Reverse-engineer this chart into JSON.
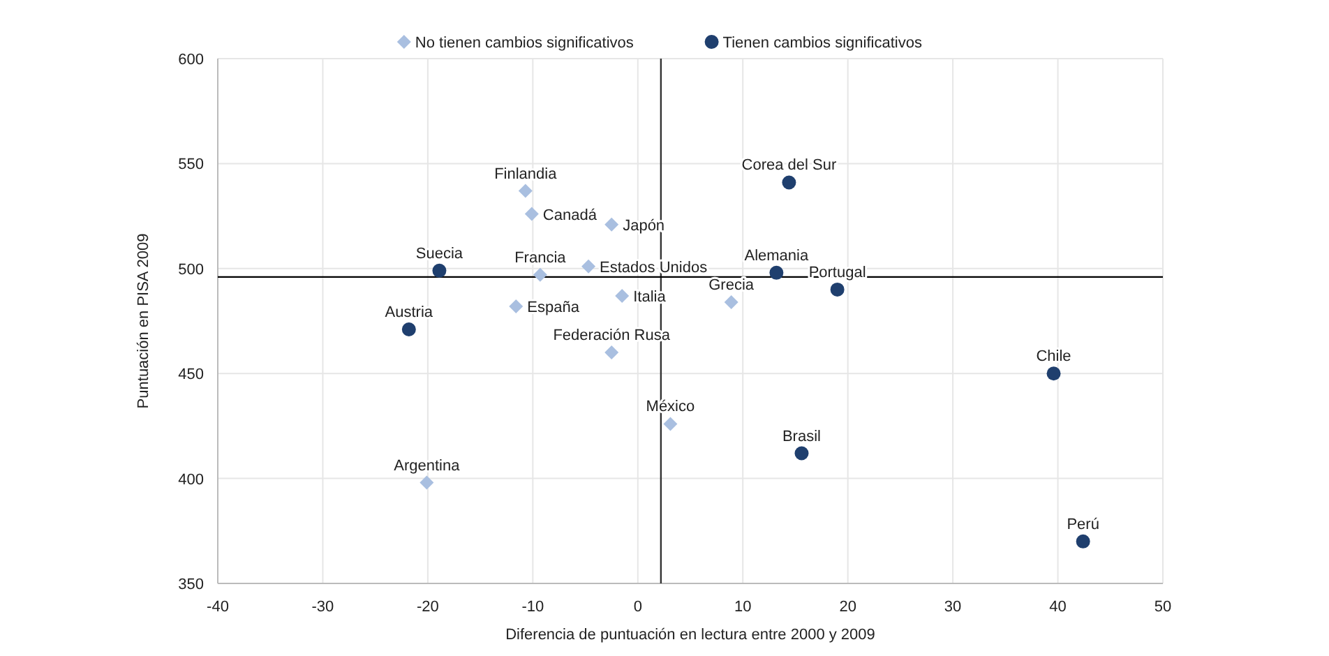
{
  "chart_data": {
    "type": "scatter",
    "xlabel": "Diferencia de puntuación en lectura entre  2000 y 2009",
    "ylabel": "Puntuación en PISA 2009",
    "xlim": [
      -40,
      50
    ],
    "xticks": [
      -40,
      -30,
      -20,
      -10,
      0,
      10,
      20,
      30,
      40,
      50
    ],
    "ylim": [
      350,
      600
    ],
    "yticks": [
      350,
      400,
      450,
      500,
      550,
      600
    ],
    "grid": true,
    "legend": "top",
    "series": [
      {
        "name": "No tienen cambios significativos",
        "color": "#a9bfe0",
        "marker": "diamond",
        "x": [
          -10.7,
          -10.1,
          -2.5,
          -9.3,
          -4.7,
          -1.5,
          -11.6,
          -2.5,
          8.9,
          3.1,
          -20.1
        ],
        "values": [
          537,
          526,
          521,
          497,
          501,
          487,
          482,
          460,
          484,
          426,
          398
        ]
      },
      {
        "name": "Tienen cambios significativos",
        "color": "#1f3f6e",
        "marker": "circle",
        "x": [
          14.4,
          13.2,
          19.0,
          -18.9,
          -21.8,
          39.6,
          15.6,
          42.4
        ],
        "values": [
          541,
          498,
          490,
          499,
          471,
          450,
          412,
          370
        ]
      }
    ],
    "ref_lines": [
      {
        "axis": "x",
        "value": 2.2,
        "color": "#333333"
      },
      {
        "axis": "y",
        "value": 496,
        "color": "#000000"
      }
    ],
    "annotations": [
      {
        "text": "Finlandia",
        "x": -10.7,
        "y": 537
      },
      {
        "text": "Canadá",
        "x": -10.1,
        "y": 526
      },
      {
        "text": "Japón",
        "x": -2.5,
        "y": 521
      },
      {
        "text": "Suecia",
        "x": -18.9,
        "y": 499
      },
      {
        "text": "Francia",
        "x": -9.3,
        "y": 497
      },
      {
        "text": "Estados Unidos",
        "x": -4.7,
        "y": 501
      },
      {
        "text": "Corea del Sur",
        "x": 14.4,
        "y": 541
      },
      {
        "text": "Alemania",
        "x": 13.2,
        "y": 498
      },
      {
        "text": "Portugal",
        "x": 19.0,
        "y": 490
      },
      {
        "text": "Grecia",
        "x": 8.9,
        "y": 484
      },
      {
        "text": "Italia",
        "x": -1.5,
        "y": 487
      },
      {
        "text": "Austria",
        "x": -21.8,
        "y": 471
      },
      {
        "text": "España",
        "x": -11.6,
        "y": 482
      },
      {
        "text": "Federación Rusa",
        "x": -2.5,
        "y": 460
      },
      {
        "text": "Chile",
        "x": 39.6,
        "y": 450
      },
      {
        "text": "México",
        "x": 3.1,
        "y": 426
      },
      {
        "text": "Brasil",
        "x": 15.6,
        "y": 412
      },
      {
        "text": "Argentina",
        "x": -20.1,
        "y": 398
      },
      {
        "text": "Perú",
        "x": 42.4,
        "y": 370
      }
    ]
  }
}
